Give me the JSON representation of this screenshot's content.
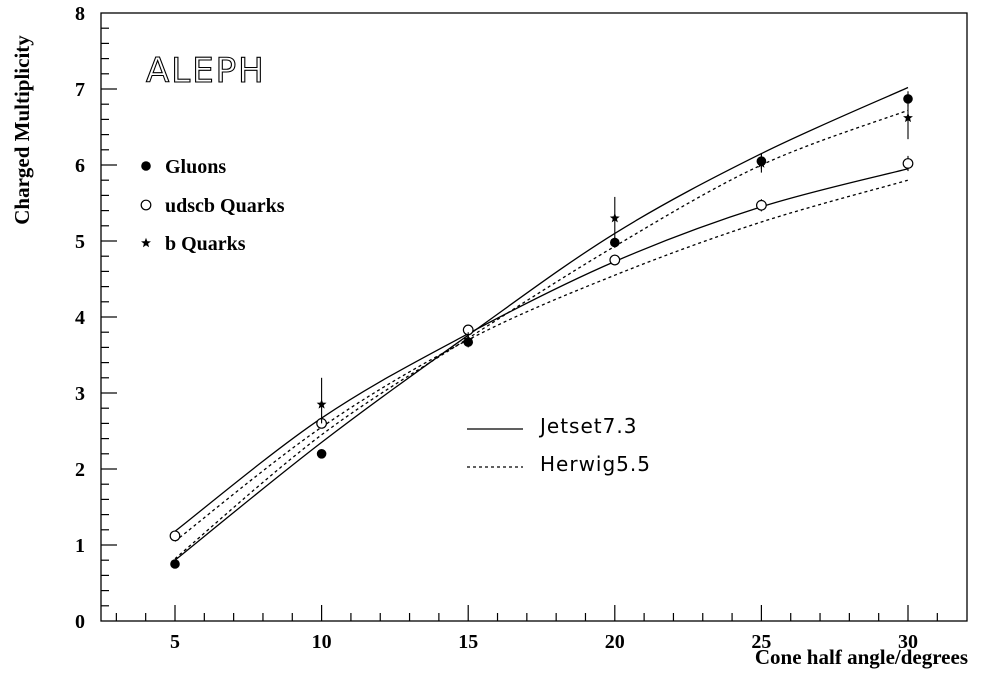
{
  "chart_data": {
    "type": "scatter",
    "title": "ALEPH",
    "xlabel": "Cone half angle/degrees",
    "ylabel": "Charged Multiplicity",
    "xlim": [
      0,
      36
    ],
    "ylim": [
      0,
      8
    ],
    "x_ticks": [
      5,
      10,
      15,
      20,
      25,
      30
    ],
    "y_ticks": [
      0,
      1,
      2,
      3,
      4,
      5,
      6,
      7,
      8
    ],
    "grid": false,
    "legend_position": "top-left",
    "series": [
      {
        "name": "Gluons",
        "marker": "filled-circle",
        "points": [
          {
            "x": 5,
            "y": 0.75,
            "err": 0.02
          },
          {
            "x": 10,
            "y": 2.2,
            "err": 0.05
          },
          {
            "x": 15,
            "y": 3.67,
            "err": 0.06
          },
          {
            "x": 20,
            "y": 4.98,
            "err": 0.07
          },
          {
            "x": 25,
            "y": 6.05,
            "err": 0.1
          },
          {
            "x": 30,
            "y": 6.87,
            "err": 0.1
          }
        ]
      },
      {
        "name": "udscb Quarks",
        "marker": "open-circle",
        "points": [
          {
            "x": 5,
            "y": 1.12,
            "err": 0.02
          },
          {
            "x": 10,
            "y": 2.6,
            "err": 0.05
          },
          {
            "x": 15,
            "y": 3.83,
            "err": 0.05
          },
          {
            "x": 20,
            "y": 4.75,
            "err": 0.07
          },
          {
            "x": 25,
            "y": 5.47,
            "err": 0.08
          },
          {
            "x": 30,
            "y": 6.02,
            "err": 0.1
          }
        ]
      },
      {
        "name": "b Quarks",
        "marker": "star",
        "points": [
          {
            "x": 10,
            "y": 2.85,
            "err_low": 0.25,
            "err_high": 0.35
          },
          {
            "x": 15,
            "y": 3.7,
            "err_low": 0.1,
            "err_high": 0.1
          },
          {
            "x": 20,
            "y": 5.3,
            "err_low": 0.28,
            "err_high": 0.28
          },
          {
            "x": 25,
            "y": 6.02,
            "err_low": 0.12,
            "err_high": 0.12
          },
          {
            "x": 30,
            "y": 6.62,
            "err_low": 0.28,
            "err_high": 0.25
          }
        ]
      }
    ],
    "model_curves": [
      {
        "name": "Jetset7.3",
        "style": "solid",
        "lines": [
          {
            "x": [
              5,
              10,
              15,
              20,
              25,
              30
            ],
            "y": [
              0.8,
              2.35,
              3.76,
              5.1,
              6.15,
              7.02
            ]
          },
          {
            "x": [
              5,
              10,
              15,
              20,
              25,
              30
            ],
            "y": [
              1.18,
              2.67,
              3.78,
              4.73,
              5.45,
              5.95
            ]
          }
        ]
      },
      {
        "name": "Herwig5.5",
        "style": "dashed",
        "lines": [
          {
            "x": [
              5,
              10,
              15,
              20,
              25,
              30
            ],
            "y": [
              0.82,
              2.45,
              3.72,
              4.93,
              6.0,
              6.72
            ]
          },
          {
            "x": [
              5,
              10,
              15,
              20,
              25,
              30
            ],
            "y": [
              1.05,
              2.55,
              3.7,
              4.55,
              5.25,
              5.8
            ]
          }
        ]
      }
    ]
  }
}
